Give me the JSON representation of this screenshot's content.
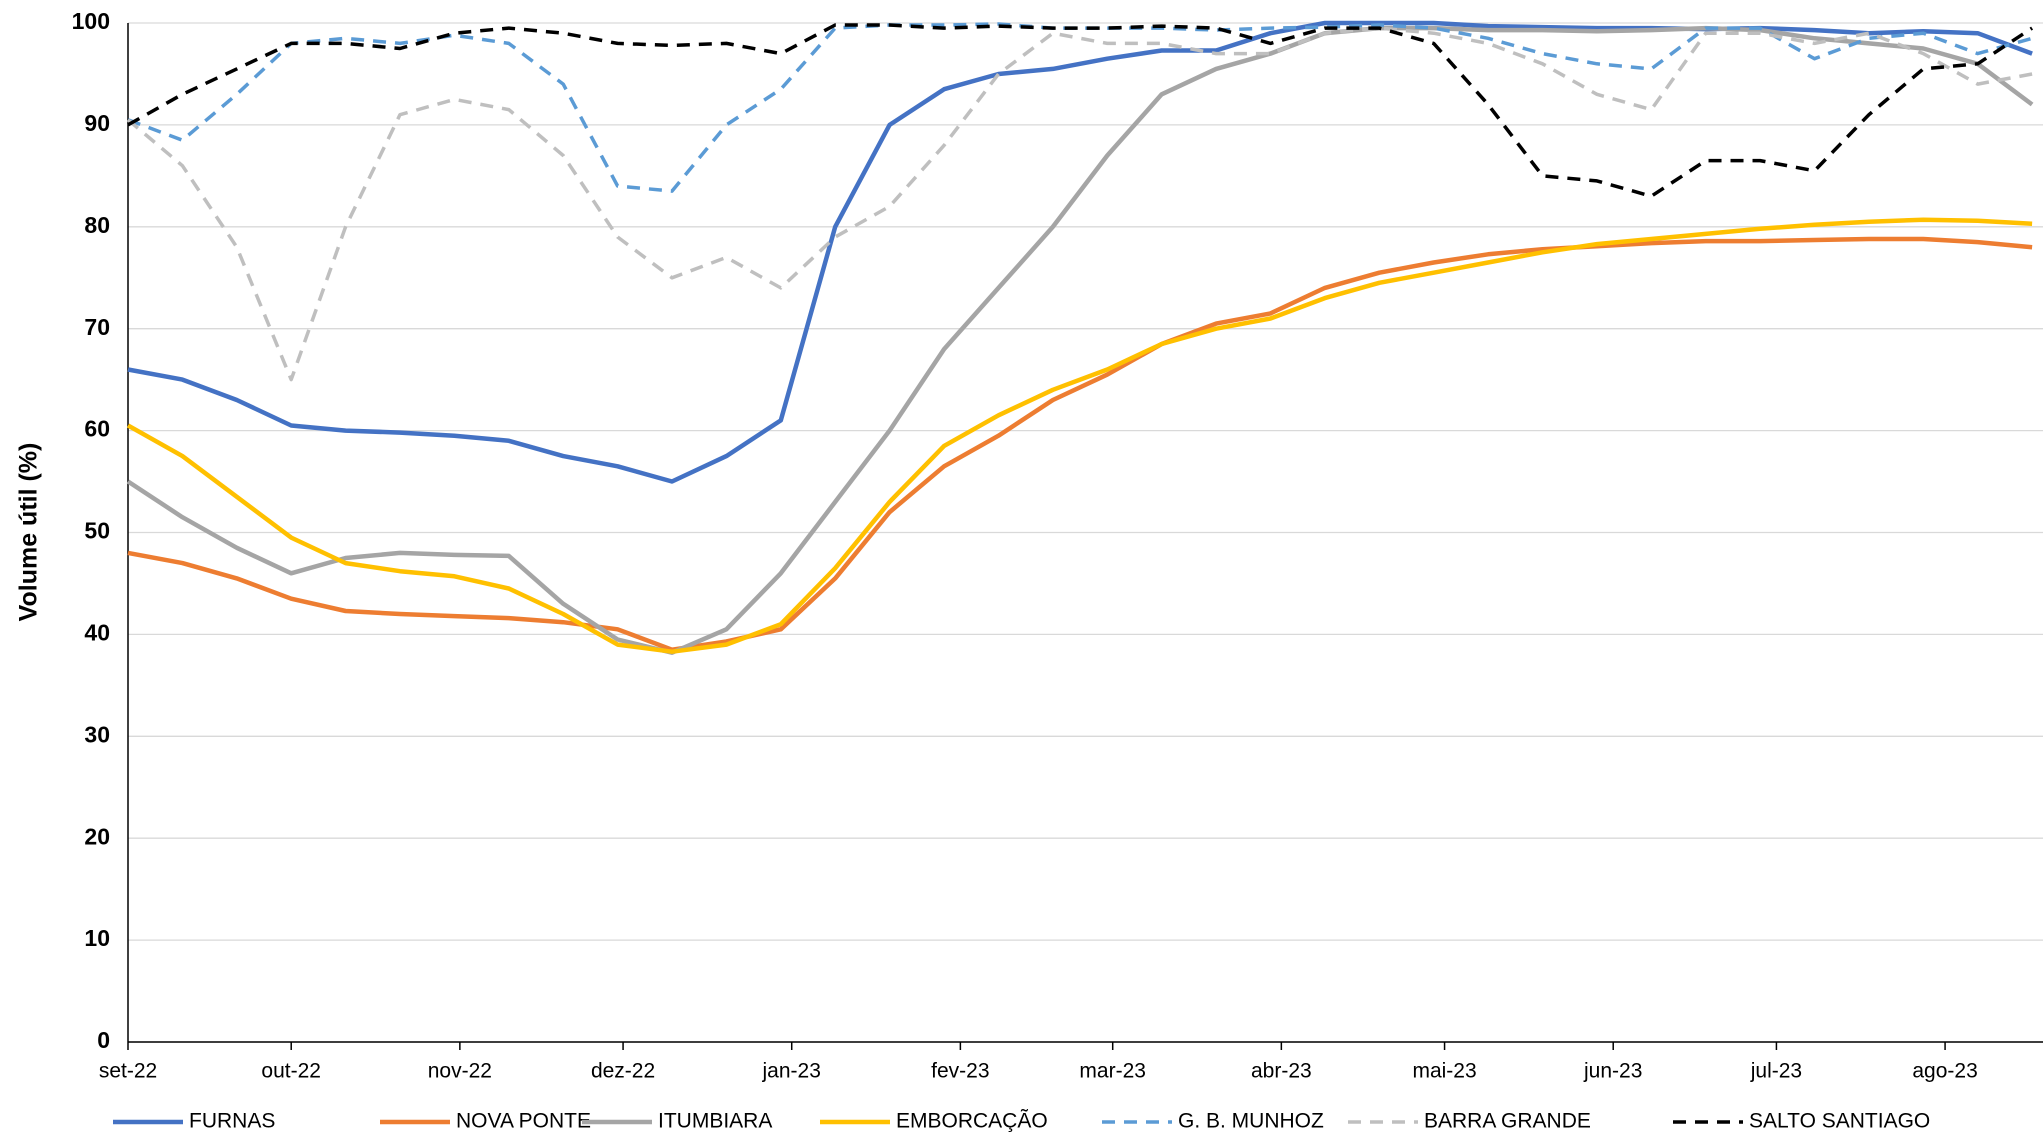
{
  "chart_data": {
    "type": "line",
    "y_label": "Volume útil (%)",
    "x": [
      0,
      10,
      20,
      30,
      40,
      50,
      60,
      70,
      80,
      90,
      100,
      110,
      120,
      130,
      140,
      150,
      160,
      170,
      180,
      190,
      200,
      210,
      220,
      230,
      240,
      250,
      260,
      270,
      280,
      290,
      300,
      310,
      320,
      330,
      340,
      350
    ],
    "xlim": [
      0,
      352
    ],
    "xticks": [
      {
        "value": 0,
        "label": "set-22"
      },
      {
        "value": 30,
        "label": "out-22"
      },
      {
        "value": 61,
        "label": "nov-22"
      },
      {
        "value": 91,
        "label": "dez-22"
      },
      {
        "value": 122,
        "label": "jan-23"
      },
      {
        "value": 153,
        "label": "fev-23"
      },
      {
        "value": 181,
        "label": "mar-23"
      },
      {
        "value": 212,
        "label": "abr-23"
      },
      {
        "value": 242,
        "label": "mai-23"
      },
      {
        "value": 273,
        "label": "jun-23"
      },
      {
        "value": 303,
        "label": "jul-23"
      },
      {
        "value": 334,
        "label": "ago-23"
      }
    ],
    "ylim": [
      0,
      100
    ],
    "yticks": [
      0,
      10,
      20,
      30,
      40,
      50,
      60,
      70,
      80,
      90,
      100
    ],
    "grid": true,
    "legend": "bottom",
    "series": [
      {
        "name": "FURNAS",
        "color": "#4472c4",
        "dash": false,
        "values": [
          66,
          65,
          63,
          60.5,
          60,
          59.8,
          59.5,
          59,
          57.5,
          56.5,
          55,
          57.5,
          61,
          80,
          90,
          93.5,
          95,
          95.5,
          96.5,
          97.3,
          97.3,
          99,
          100,
          100,
          100,
          99.7,
          99.6,
          99.5,
          99.5,
          99.4,
          99.5,
          99.3,
          99,
          99.2,
          99,
          97
        ]
      },
      {
        "name": "NOVA PONTE",
        "color": "#ed7d31",
        "dash": false,
        "values": [
          48,
          47,
          45.5,
          43.5,
          42.3,
          42,
          41.8,
          41.6,
          41.2,
          40.5,
          38.5,
          39.3,
          40.5,
          45.5,
          52,
          56.5,
          59.5,
          63,
          65.5,
          68.5,
          70.5,
          71.5,
          74,
          75.5,
          76.5,
          77.3,
          77.8,
          78.1,
          78.4,
          78.6,
          78.6,
          78.7,
          78.8,
          78.8,
          78.5,
          78
        ]
      },
      {
        "name": "ITUMBIARA",
        "color": "#a5a5a5",
        "dash": false,
        "values": [
          55,
          51.5,
          48.5,
          46,
          47.5,
          48,
          47.8,
          47.7,
          43,
          39.5,
          38.2,
          40.5,
          46,
          53,
          60,
          68,
          74,
          80,
          87,
          93,
          95.5,
          97,
          99,
          99.5,
          99.5,
          99.3,
          99.3,
          99.2,
          99.3,
          99.5,
          99.3,
          98.5,
          98,
          97.5,
          96,
          92
        ]
      },
      {
        "name": "EMBORCAÇÃO",
        "color": "#ffc000",
        "dash": false,
        "values": [
          60.5,
          57.5,
          53.5,
          49.5,
          47,
          46.2,
          45.7,
          44.5,
          42,
          39,
          38.3,
          39,
          41,
          46.5,
          53,
          58.5,
          61.5,
          64,
          66,
          68.5,
          70,
          71,
          73,
          74.5,
          75.5,
          76.5,
          77.5,
          78.3,
          78.8,
          79.3,
          79.8,
          80.2,
          80.5,
          80.7,
          80.6,
          80.3
        ]
      },
      {
        "name": "G. B. MUNHOZ",
        "color": "#5b9bd5",
        "dash": true,
        "values": [
          90.5,
          88.5,
          93,
          98,
          98.5,
          98,
          98.8,
          98,
          94,
          84,
          83.5,
          90,
          93.5,
          99.5,
          99.8,
          99.8,
          99.9,
          99.5,
          99.5,
          99.5,
          99.3,
          99.5,
          99.6,
          99.8,
          99.5,
          98.5,
          97,
          96,
          95.5,
          99.5,
          99.5,
          96.5,
          98.5,
          99,
          97,
          98.5
        ]
      },
      {
        "name": "BARRA GRANDE",
        "color": "#bfbfbf",
        "dash": true,
        "values": [
          90.5,
          86,
          78,
          65,
          80,
          91,
          92.5,
          91.5,
          87,
          79,
          75,
          77,
          74,
          79,
          82,
          88,
          95,
          99,
          98,
          98,
          97,
          97,
          99,
          99.5,
          99,
          98,
          96,
          93,
          91.5,
          99,
          99,
          98,
          99,
          97,
          94,
          95
        ]
      },
      {
        "name": "SALTO SANTIAGO",
        "color": "#000000",
        "dash": true,
        "values": [
          90,
          93,
          95.5,
          98,
          98,
          97.5,
          99,
          99.5,
          99,
          98,
          97.8,
          98,
          97,
          99.8,
          99.8,
          99.5,
          99.7,
          99.5,
          99.5,
          99.7,
          99.5,
          98,
          99.5,
          99.5,
          98,
          92,
          85,
          84.5,
          83,
          86.5,
          86.5,
          85.5,
          91,
          95.5,
          96,
          99.5
        ]
      }
    ]
  }
}
